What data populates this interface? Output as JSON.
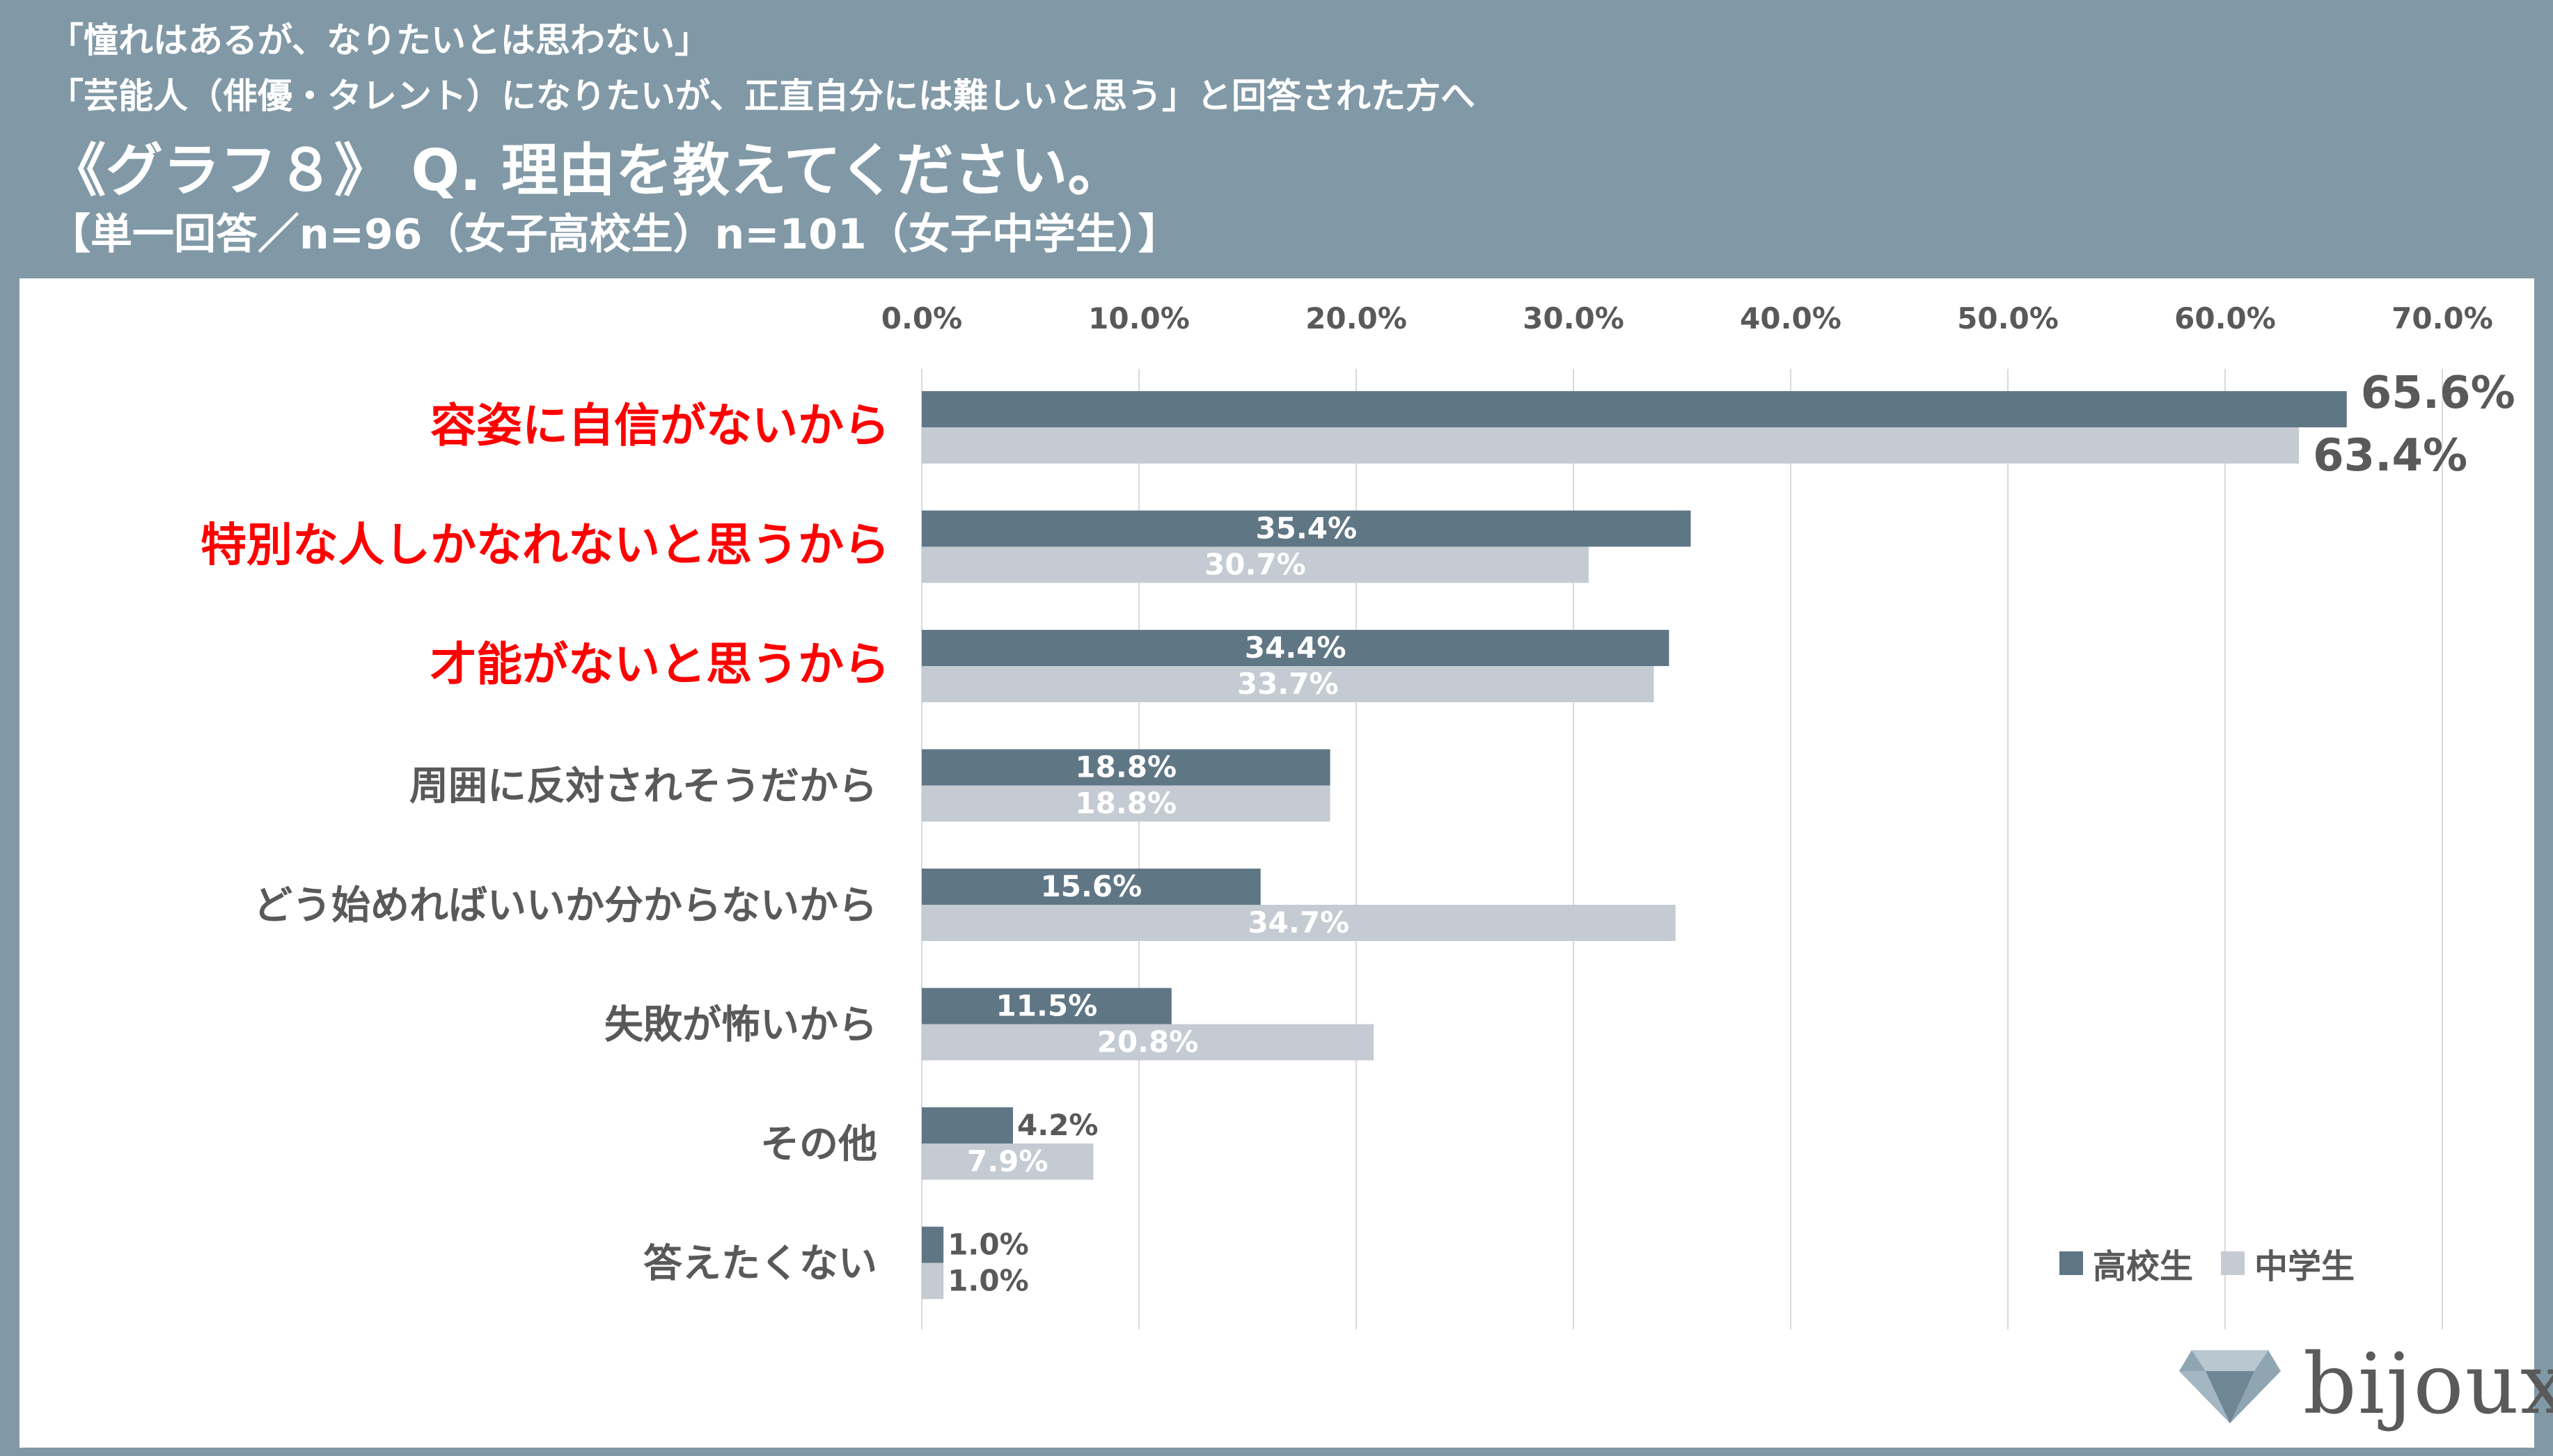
{
  "header": {
    "line1": "「憧れはあるが、なりたいとは思わない」",
    "line2": "「芸能人（俳優・タレント）になりたいが、正直自分には難しいと思う」と回答された方へ",
    "line3": "《グラフ８》 Q. 理由を教えてください。",
    "line4": "【単一回答／n=96（女子高校生）n=101（女子中学生）】"
  },
  "colors": {
    "background": "#8199a6",
    "series_high": "#5f7685",
    "series_middle": "#c5cbd2",
    "highlight_text": "#ff0000",
    "text_gray": "#595959",
    "grid": "#d9d9d9"
  },
  "legend": {
    "high_label": "高校生",
    "middle_label": "中学生",
    "placement": "bottom-right"
  },
  "logo": {
    "text": "bijoux",
    "icon": "diamond-icon"
  },
  "chart_data": {
    "type": "bar",
    "orientation": "horizontal",
    "xlim": [
      0,
      70
    ],
    "x_ticks": [
      "0.0%",
      "10.0%",
      "20.0%",
      "30.0%",
      "40.0%",
      "50.0%",
      "60.0%",
      "70.0%"
    ],
    "x_tick_values": [
      0,
      10,
      20,
      30,
      40,
      50,
      60,
      70
    ],
    "grid": true,
    "categories": [
      "容姿に自信がないから",
      "特別な人しかなれないと思うから",
      "才能がないと思うから",
      "周囲に反対されそうだから",
      "どう始めればいいか分からないから",
      "失敗が怖いから",
      "その他",
      "答えたくない"
    ],
    "highlighted": [
      true,
      true,
      true,
      false,
      false,
      false,
      false,
      false
    ],
    "series": [
      {
        "name": "高校生",
        "values": [
          65.6,
          35.4,
          34.4,
          18.8,
          15.6,
          11.5,
          4.2,
          1.0
        ],
        "labels": [
          "65.6%",
          "35.4%",
          "34.4%",
          "18.8%",
          "15.6%",
          "11.5%",
          "4.2%",
          "1.0%"
        ]
      },
      {
        "name": "中学生",
        "values": [
          63.4,
          30.7,
          33.7,
          18.8,
          34.7,
          20.8,
          7.9,
          1.0
        ],
        "labels": [
          "63.4%",
          "30.7%",
          "33.7%",
          "18.8%",
          "34.7%",
          "20.8%",
          "7.9%",
          "1.0%"
        ]
      }
    ]
  }
}
